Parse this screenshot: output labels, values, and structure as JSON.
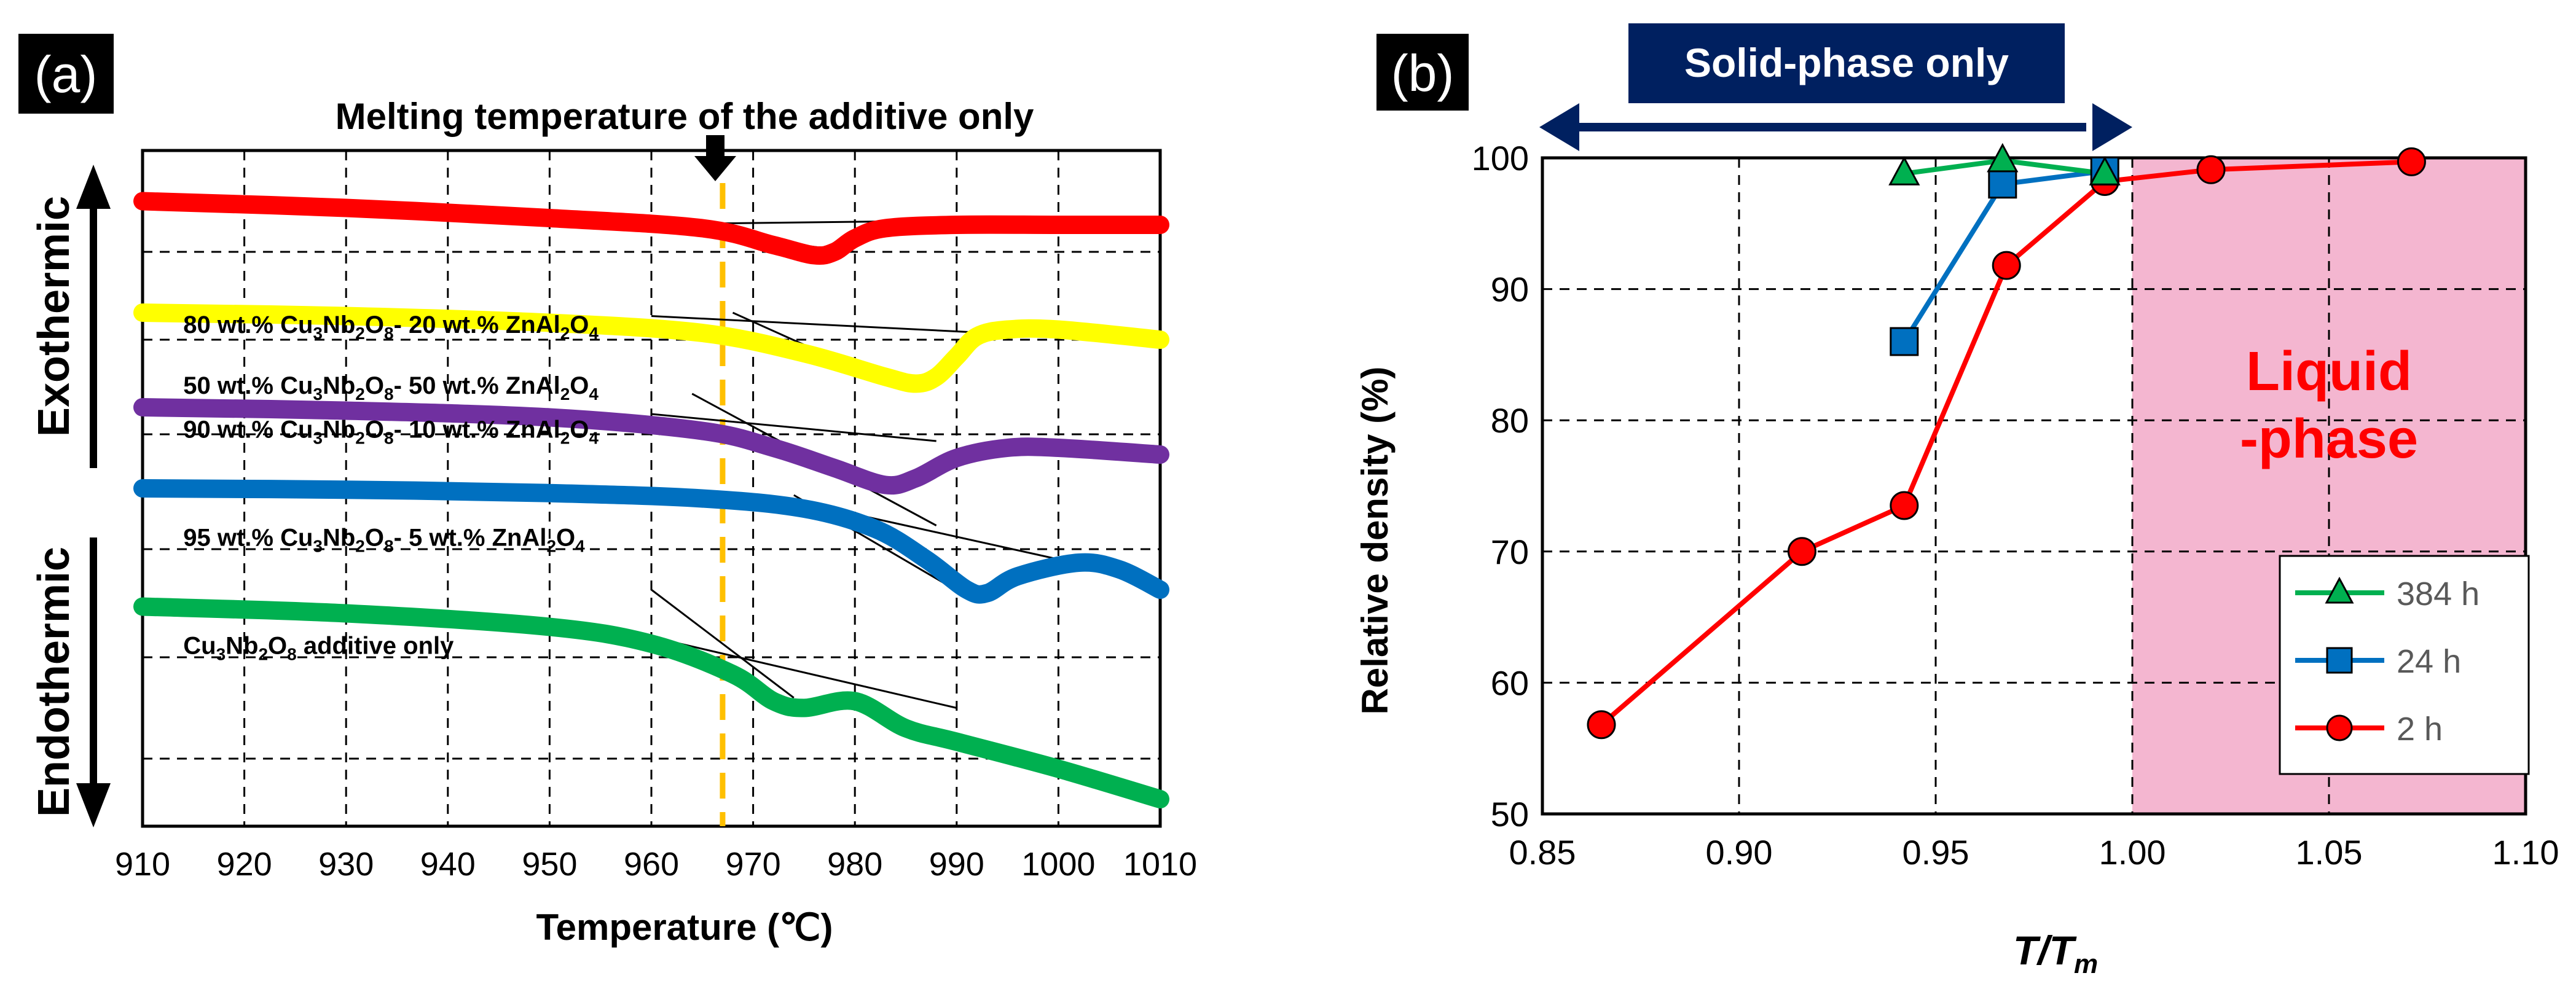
{
  "chart_data": [
    {
      "panel_label": "(a)",
      "type": "line",
      "title": "Melting temperature of the additive only",
      "xlabel": "Temperature (℃)",
      "xlim": [
        910,
        1010
      ],
      "xticks": [
        910,
        920,
        930,
        940,
        950,
        960,
        970,
        980,
        990,
        1000,
        1010
      ],
      "ylim": [
        0,
        10
      ],
      "ygrid": [
        1,
        2.5,
        4.1,
        5.8,
        7.2,
        8.5
      ],
      "melting_line_x": 967,
      "left_labels": {
        "exo": "Exothermic",
        "endo": "Endothermic"
      },
      "series": [
        {
          "name": "red",
          "color": "#ff0000",
          "label_parts": [
            "50 wt.% Cu",
            "3",
            "Nb",
            "2",
            "O",
            "8",
            "- 50 wt.% ZnAl",
            "2",
            "O",
            "4"
          ],
          "label_at": [
            914,
            6.4
          ],
          "x": [
            910,
            930,
            950,
            965,
            972,
            976,
            978,
            980,
            983,
            990,
            1000,
            1010
          ],
          "y": [
            9.25,
            9.15,
            9.0,
            8.85,
            8.6,
            8.45,
            8.5,
            8.7,
            8.85,
            8.9,
            8.9,
            8.9
          ]
        },
        {
          "name": "yellow",
          "color": "#ffff00",
          "label_parts": [
            "80 wt.% Cu",
            "3",
            "Nb",
            "2",
            "O",
            "8",
            "- 20 wt.% ZnAl",
            "2",
            "O",
            "4"
          ],
          "label_at": [
            914,
            7.3
          ],
          "x": [
            910,
            930,
            950,
            965,
            975,
            983,
            986,
            988,
            990,
            992,
            995,
            1000,
            1010
          ],
          "y": [
            7.6,
            7.55,
            7.45,
            7.3,
            7.0,
            6.65,
            6.55,
            6.65,
            6.95,
            7.25,
            7.35,
            7.35,
            7.2
          ]
        },
        {
          "name": "purple",
          "color": "#7030a0",
          "label_parts": [
            "90 wt.% Cu",
            "3",
            "Nb",
            "2",
            "O",
            "8",
            "- 10 wt.% ZnAl",
            "2",
            "O",
            "4"
          ],
          "label_at": [
            914,
            5.75
          ],
          "x": [
            910,
            930,
            950,
            965,
            972,
            978,
            983,
            986,
            990,
            995,
            1000,
            1010
          ],
          "y": [
            6.2,
            6.15,
            6.05,
            5.85,
            5.6,
            5.3,
            5.05,
            5.15,
            5.45,
            5.6,
            5.6,
            5.5
          ]
        },
        {
          "name": "blue",
          "color": "#0070c0",
          "label_parts": [
            "95 wt.% Cu",
            "3",
            "Nb",
            "2",
            "O",
            "8",
            "- 5 wt.% ZnAl",
            "2",
            "O",
            "4"
          ],
          "label_at": [
            914,
            4.15
          ],
          "x": [
            910,
            930,
            950,
            965,
            975,
            982,
            987,
            991,
            993,
            996,
            1002,
            1006,
            1010
          ],
          "y": [
            5.0,
            4.98,
            4.93,
            4.85,
            4.7,
            4.4,
            3.95,
            3.5,
            3.45,
            3.7,
            3.9,
            3.8,
            3.5
          ]
        },
        {
          "name": "green",
          "color": "#00b050",
          "label_parts": [
            "Cu",
            "3",
            "Nb",
            "2",
            "O",
            "8",
            " additive only"
          ],
          "label_at": [
            914,
            2.55
          ],
          "x": [
            910,
            930,
            950,
            960,
            968,
            972,
            975,
            980,
            985,
            990,
            1000,
            1010
          ],
          "y": [
            3.25,
            3.15,
            2.95,
            2.7,
            2.25,
            1.85,
            1.75,
            1.85,
            1.45,
            1.25,
            0.85,
            0.4
          ]
        }
      ],
      "tangents": [
        [
          [
            953,
            9.0
          ],
          [
            980,
            8.5
          ]
        ],
        [
          [
            955,
            8.9
          ],
          [
            983,
            8.95
          ]
        ],
        [
          [
            960,
            7.55
          ],
          [
            993,
            7.3
          ]
        ],
        [
          [
            968,
            7.6
          ],
          [
            982,
            6.65
          ]
        ],
        [
          [
            960,
            6.1
          ],
          [
            988,
            5.7
          ]
        ],
        [
          [
            964,
            6.4
          ],
          [
            988,
            4.45
          ]
        ],
        [
          [
            973,
            4.85
          ],
          [
            1009,
            3.65
          ]
        ],
        [
          [
            974,
            4.9
          ],
          [
            991,
            3.4
          ]
        ],
        [
          [
            960,
            3.5
          ],
          [
            974,
            1.9
          ]
        ],
        [
          [
            960,
            2.8
          ],
          [
            990,
            1.75
          ]
        ]
      ]
    },
    {
      "panel_label": "(b)",
      "type": "line",
      "xlabel_parts": [
        "T",
        "/",
        "T",
        "m"
      ],
      "ylabel": "Relative density (%)",
      "xlim": [
        0.85,
        1.1
      ],
      "xticks": [
        "0.85",
        "0.90",
        "0.95",
        "1.00",
        "1.05",
        "1.10"
      ],
      "ylim": [
        50,
        100
      ],
      "yticks": [
        "50",
        "60",
        "70",
        "80",
        "90",
        "100"
      ],
      "banner": "Solid-phase only",
      "liquid_label": [
        "Liquid",
        "-phase"
      ],
      "liquid_region": [
        1.0,
        1.1
      ],
      "series": [
        {
          "name": "384 h",
          "color": "#00b050",
          "marker": "triangle",
          "x": [
            0.942,
            0.967,
            0.993
          ],
          "y": [
            98.8,
            99.8,
            98.8
          ]
        },
        {
          "name": "24 h",
          "color": "#0070c0",
          "marker": "square",
          "x": [
            0.942,
            0.967,
            0.993
          ],
          "y": [
            86,
            98,
            99
          ]
        },
        {
          "name": "2 h",
          "color": "#ff0000",
          "marker": "circle",
          "x": [
            0.865,
            0.916,
            0.942,
            0.968,
            0.993,
            1.02,
            1.071
          ],
          "y": [
            56.8,
            70,
            73.5,
            91.8,
            98.2,
            99.1,
            99.7
          ]
        }
      ]
    }
  ]
}
